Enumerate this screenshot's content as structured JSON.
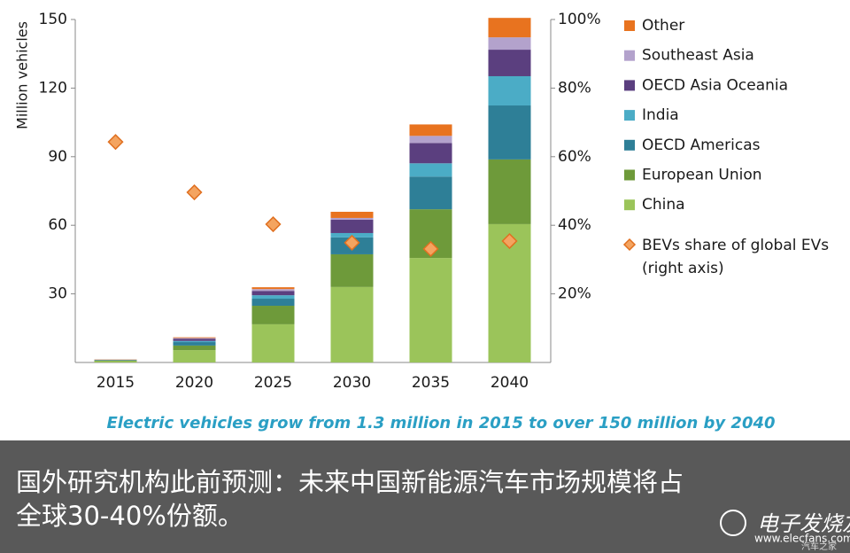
{
  "chart_data": {
    "type": "bar",
    "stacked": true,
    "categories": [
      "2015",
      "2020",
      "2025",
      "2030",
      "2035",
      "2040"
    ],
    "ylabel": "Million vehicles",
    "ylim": [
      0,
      150
    ],
    "yticks": [
      30,
      60,
      90,
      120,
      150
    ],
    "y2lim": [
      0,
      100
    ],
    "y2ticks": [
      {
        "value": 20,
        "label": "20%"
      },
      {
        "value": 40,
        "label": "40%"
      },
      {
        "value": 60,
        "label": "60%"
      },
      {
        "value": 80,
        "label": "80%"
      },
      {
        "value": 100,
        "label": "100%"
      }
    ],
    "grid": false,
    "legend": "right",
    "series": [
      {
        "name": "China",
        "color": "#9bc45a",
        "values": [
          0.6,
          5.4,
          16.7,
          33,
          45.7,
          60.5
        ]
      },
      {
        "name": "European Union",
        "color": "#6e9a3a",
        "values": [
          0.3,
          2,
          8.1,
          14.3,
          21.3,
          28.3
        ]
      },
      {
        "name": "OECD Americas",
        "color": "#2e7f97",
        "values": [
          0.2,
          1.5,
          3.1,
          7.4,
          14.3,
          23.6
        ]
      },
      {
        "name": "India",
        "color": "#4bacc6",
        "values": [
          0,
          0.5,
          1.5,
          1.9,
          5.8,
          12.8
        ]
      },
      {
        "name": "OECD Asia Oceania",
        "color": "#5b3f7f",
        "values": [
          0.1,
          1,
          1.9,
          5.8,
          8.9,
          11.6
        ]
      },
      {
        "name": "Southeast Asia",
        "color": "#b3a2cc",
        "values": [
          0,
          0.3,
          0.8,
          0.8,
          3.1,
          5.4
        ]
      },
      {
        "name": "Other",
        "color": "#e8731f",
        "values": [
          0.1,
          0.3,
          0.8,
          2.7,
          5,
          8.5
        ]
      },
      {
        "name": "BEVs share of global EVs",
        "note": "(right axis)",
        "type": "scatter",
        "axis": "y2",
        "color": "#f4a460",
        "edge": "#e07020",
        "values": [
          64.3,
          49.6,
          40.3,
          34.9,
          33.1,
          35.4
        ]
      }
    ],
    "caption": "Electric vehicles grow from 1.3 million in 2015 to over 150 million by 2040"
  },
  "banner": {
    "lines": [
      "国外研究机构此前预测：未来中国新能源汽车市场规模将占",
      "全球30-40%份额。"
    ]
  },
  "watermark": {
    "brand": "电子发烧友",
    "url": "www.elecfans.com",
    "source": "汽车之家"
  }
}
